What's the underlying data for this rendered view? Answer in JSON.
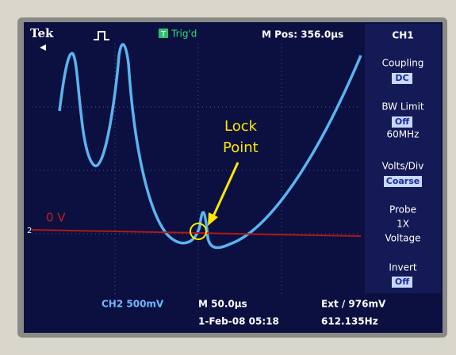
{
  "header": {
    "brand": "Tek",
    "trigger_icon": "T",
    "trigger_status": "Trig'd",
    "position": "M Pos: 356.0µs"
  },
  "menu": {
    "title": "CH1",
    "items": [
      {
        "label": "Coupling",
        "value": "DC"
      },
      {
        "label": "BW Limit",
        "value": "Off",
        "note": "60MHz"
      },
      {
        "label": "Volts/Div",
        "value": "Coarse"
      },
      {
        "label": "Probe",
        "value": "1X",
        "note": "Voltage"
      },
      {
        "label": "Invert",
        "value": "Off"
      }
    ]
  },
  "footer": {
    "channel": "CH2 500mV",
    "timebase": "M 50.0µs",
    "date": "1-Feb-08 05:18",
    "trigger": "Ext ∕ 976mV",
    "frequency": "612.135Hz"
  },
  "annotations": {
    "lock": "Lock",
    "point": "Point",
    "zero": "0 V",
    "marker": "2"
  }
}
